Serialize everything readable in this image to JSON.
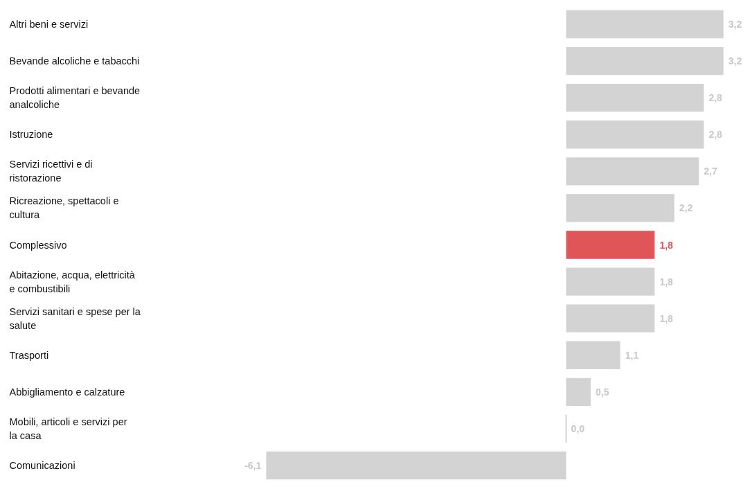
{
  "chart_data": {
    "type": "bar",
    "orientation": "horizontal",
    "categories": [
      "Altri beni e servizi",
      "Bevande alcoliche e tabacchi",
      "Prodotti alimentari e bevande analcoliche",
      "Istruzione",
      "Servizi ricettivi e di ristorazione",
      "Ricreazione, spettacoli e cultura",
      "Complessivo",
      "Abitazione, acqua, elettricità e combustibili",
      "Servizi sanitari e spese per la salute",
      "Trasporti",
      "Abbigliamento e calzature",
      "Mobili, articoli e servizi per la casa",
      "Comunicazioni"
    ],
    "values": [
      3.2,
      3.2,
      2.8,
      2.8,
      2.7,
      2.2,
      1.8,
      1.8,
      1.8,
      1.1,
      0.5,
      0.0,
      -6.1
    ],
    "value_labels": [
      "3,2",
      "3,2",
      "2,8",
      "2,8",
      "2,7",
      "2,2",
      "1,8",
      "1,8",
      "1,8",
      "1,1",
      "0,5",
      "0,0",
      "-6,1"
    ],
    "colors": [
      "#d3d3d3",
      "#d3d3d3",
      "#d3d3d3",
      "#d3d3d3",
      "#d3d3d3",
      "#d3d3d3",
      "#e05558",
      "#d3d3d3",
      "#d3d3d3",
      "#d3d3d3",
      "#d3d3d3",
      "#d3d3d3",
      "#d3d3d3"
    ],
    "grid": false
  }
}
